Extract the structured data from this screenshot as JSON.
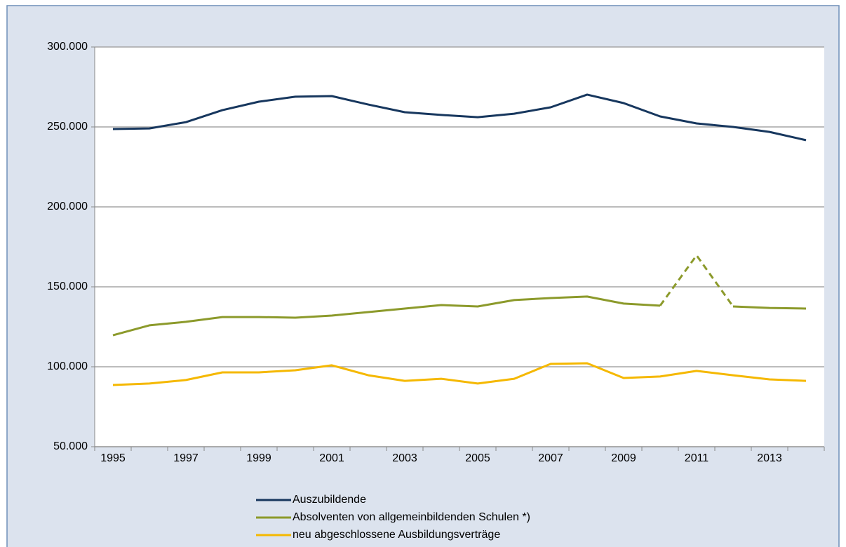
{
  "chart_data": {
    "type": "line",
    "categories": [
      "1995",
      null,
      "1997",
      null,
      "1999",
      null,
      "2001",
      null,
      "2003",
      null,
      "2005",
      null,
      "2007",
      null,
      "2009",
      null,
      "2011",
      null,
      "2013",
      null
    ],
    "series": [
      {
        "name": "Auszubildende",
        "color": "#17375e",
        "values": [
          248700,
          249100,
          253000,
          260500,
          265800,
          268900,
          269300,
          264000,
          259200,
          257500,
          256100,
          258300,
          262300,
          270200,
          264900,
          256600,
          252200,
          250000,
          246900,
          241700
        ]
      },
      {
        "name": "Absolventen von allgemeinbildenden Schulen *)",
        "color": "#8c9a2b",
        "dashed": [
          "2011"
        ],
        "values": [
          119700,
          125900,
          128100,
          131100,
          131100,
          130700,
          132000,
          134200,
          136400,
          138600,
          137700,
          141700,
          143000,
          143900,
          139500,
          138200,
          169700,
          137700,
          136800,
          136400
        ]
      },
      {
        "name": "neu abgeschlossene Ausbildungsverträge",
        "color": "#f5b800",
        "values": [
          88600,
          89500,
          91700,
          96500,
          96500,
          97800,
          100900,
          94700,
          91200,
          92500,
          89500,
          92500,
          101800,
          102200,
          93000,
          93900,
          97400,
          94700,
          92100,
          91200
        ]
      }
    ],
    "ylim": [
      50000,
      300000
    ],
    "yticks": [
      {
        "value": 50000,
        "label": "50.000"
      },
      {
        "value": 100000,
        "label": "100.000"
      },
      {
        "value": 150000,
        "label": "150.000"
      },
      {
        "value": 200000,
        "label": "200.000"
      },
      {
        "value": 250000,
        "label": "250.000"
      },
      {
        "value": 300000,
        "label": "300.000"
      }
    ],
    "grid": true
  }
}
